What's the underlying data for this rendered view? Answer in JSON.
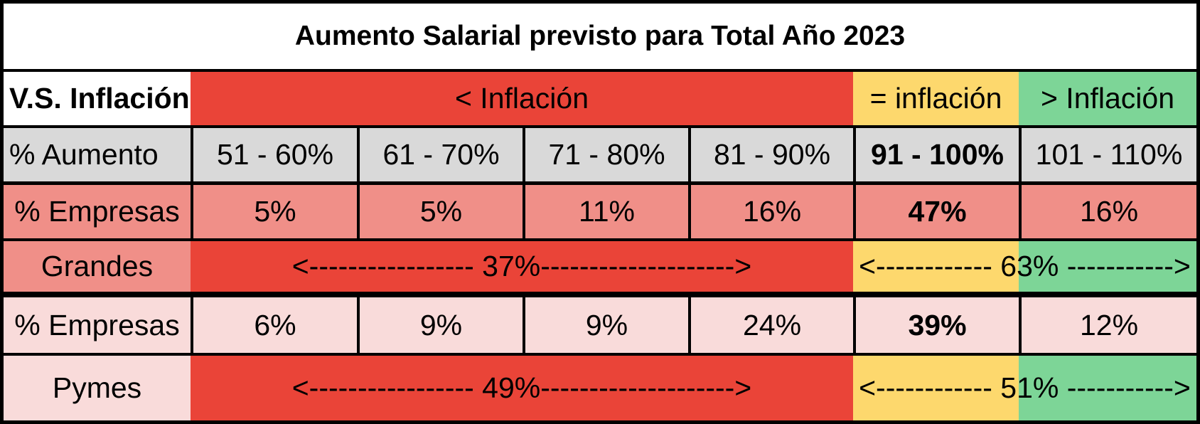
{
  "title": "Aumento Salarial previsto para Total Año 2023",
  "inflation_row": {
    "label": "V.S. Inflación",
    "below": "< Inflación",
    "equal": "= inflación",
    "above": "> Inflación"
  },
  "ranges_row": {
    "label": "% Aumento",
    "values": [
      "51 - 60%",
      "61 - 70%",
      "71 - 80%",
      "81 - 90%",
      "91 - 100%",
      "101 - 110%"
    ]
  },
  "grandes": {
    "pct_label": "% Empresas",
    "values": [
      "5%",
      "5%",
      "11%",
      "16%",
      "47%",
      "16%"
    ],
    "label": "Grandes",
    "below_summary": "<----------------- 37%-------------------->",
    "above_summary": "<------------ 63% ----------->"
  },
  "pymes": {
    "pct_label": "% Empresas",
    "values": [
      "6%",
      "9%",
      "9%",
      "24%",
      "39%",
      "12%"
    ],
    "label": "Pymes",
    "below_summary": "<----------------- 49%-------------------->",
    "above_summary": "<------------ 51% ----------->"
  },
  "colors": {
    "below_inflation": "#ea4438",
    "equal_inflation": "#fdd86d",
    "above_inflation": "#7dd597",
    "header_gray": "#d9d9d9",
    "grandes_bg": "#f08f88",
    "pymes_bg": "#f9dbda"
  }
}
